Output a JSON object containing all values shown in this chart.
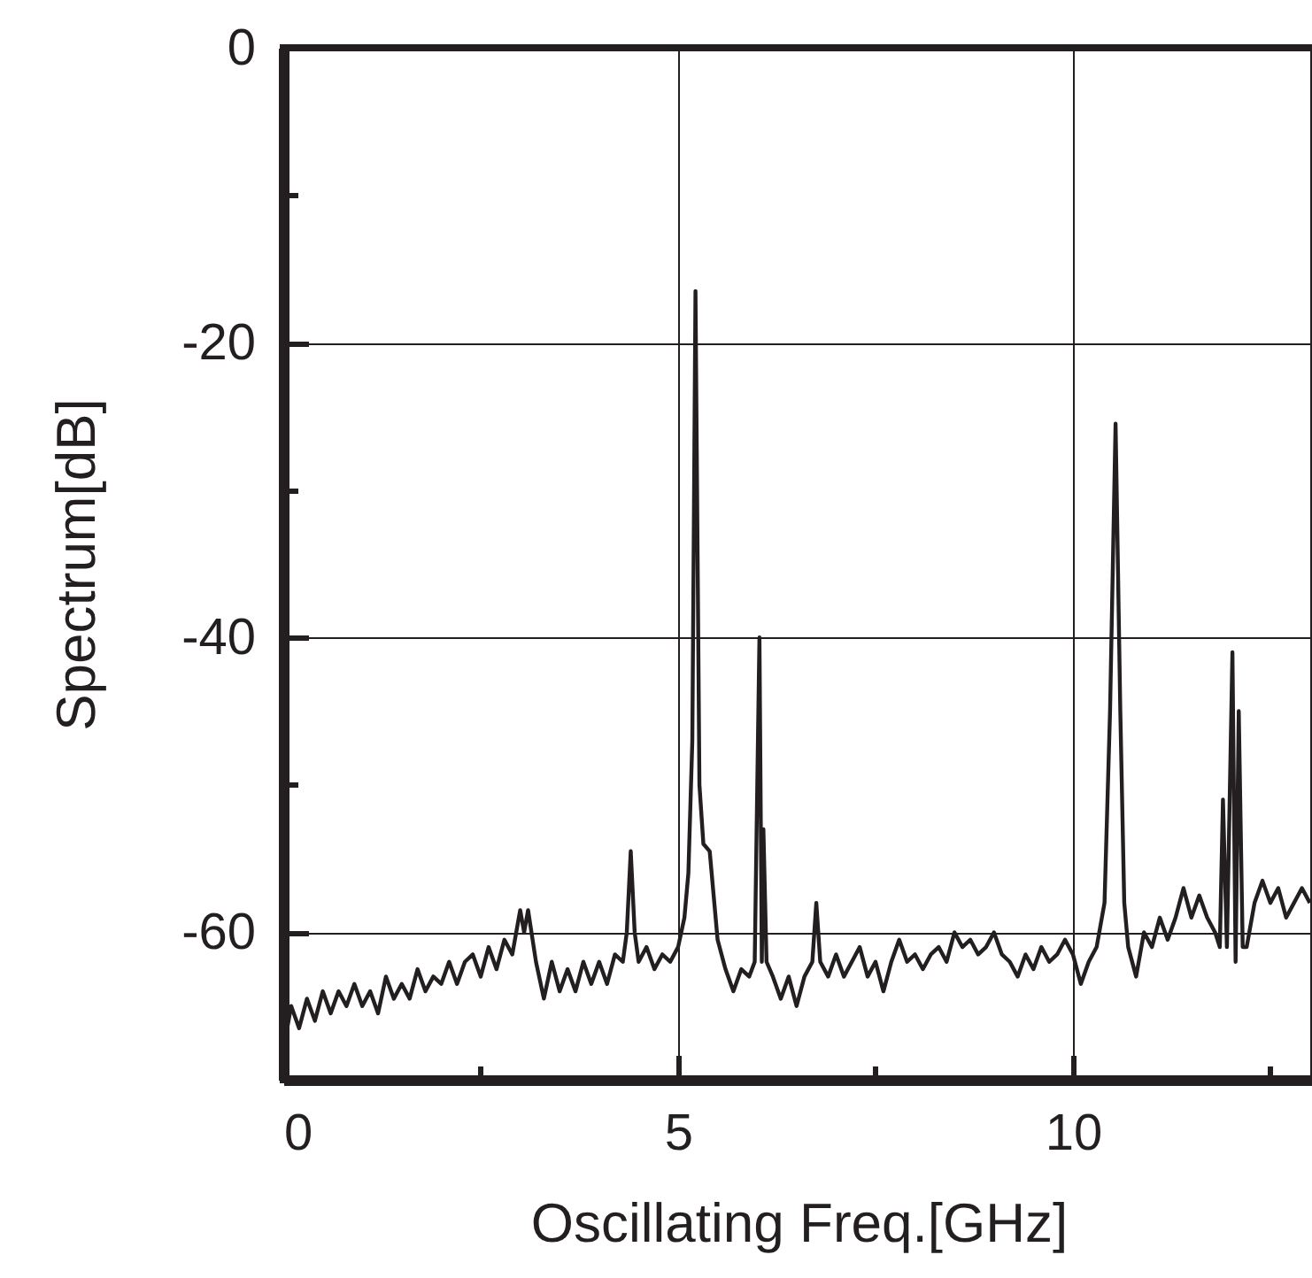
{
  "chart_data": {
    "type": "line",
    "xlabel": "Oscillating Freq.[GHz]",
    "ylabel": "Spectrum[dB]",
    "xlim": [
      0,
      13.05
    ],
    "ylim": [
      -70,
      0
    ],
    "xticks": [
      0,
      {
        "value": 2.5,
        "label": null
      },
      5,
      {
        "value": 7.5,
        "label": null
      },
      10,
      {
        "value": 12.5,
        "label": null
      }
    ],
    "yticks": [
      {
        "value": -70,
        "label": null
      },
      -60,
      {
        "value": -50,
        "label": null
      },
      -40,
      {
        "value": -30,
        "label": null
      },
      -20,
      {
        "value": -10,
        "label": null
      },
      0
    ],
    "grid": true,
    "marker": "none",
    "line_style": "solid",
    "series": [
      {
        "color": "#231f20",
        "x": [
          0,
          0.1,
          0.2,
          0.3,
          0.4,
          0.5,
          0.6,
          0.7,
          0.8,
          0.9,
          1.0,
          1.1,
          1.2,
          1.3,
          1.4,
          1.5,
          1.6,
          1.7,
          1.8,
          1.9,
          2.0,
          2.1,
          2.2,
          2.3,
          2.4,
          2.5,
          2.6,
          2.7,
          2.8,
          2.9,
          3.0,
          3.05,
          3.1,
          3.2,
          3.3,
          3.4,
          3.5,
          3.6,
          3.7,
          3.8,
          3.9,
          4.0,
          4.1,
          4.2,
          4.3,
          4.35,
          4.4,
          4.45,
          4.5,
          4.6,
          4.7,
          4.8,
          4.9,
          5.0,
          5.08,
          5.13,
          5.18,
          5.22,
          5.27,
          5.32,
          5.4,
          5.5,
          5.6,
          5.7,
          5.8,
          5.9,
          5.97,
          6.03,
          6.06,
          6.08,
          6.12,
          6.2,
          6.3,
          6.4,
          6.5,
          6.6,
          6.7,
          6.75,
          6.8,
          6.9,
          7.0,
          7.1,
          7.2,
          7.3,
          7.4,
          7.5,
          7.6,
          7.7,
          7.8,
          7.9,
          8.0,
          8.1,
          8.2,
          8.3,
          8.4,
          8.5,
          8.6,
          8.7,
          8.8,
          8.9,
          9.0,
          9.1,
          9.2,
          9.3,
          9.4,
          9.5,
          9.6,
          9.7,
          9.8,
          9.9,
          10.0,
          10.1,
          10.2,
          10.3,
          10.35,
          10.4,
          10.47,
          10.54,
          10.6,
          10.65,
          10.7,
          10.8,
          10.9,
          11.0,
          11.1,
          11.2,
          11.3,
          11.4,
          11.45,
          11.5,
          11.6,
          11.7,
          11.8,
          11.86,
          11.9,
          11.95,
          12.02,
          12.06,
          12.1,
          12.15,
          12.2,
          12.3,
          12.4,
          12.5,
          12.6,
          12.7,
          12.8,
          12.9,
          13.0
        ],
        "values": [
          -68,
          -65,
          -66.5,
          -64.5,
          -66,
          -64,
          -65.5,
          -64,
          -65,
          -63.5,
          -65,
          -64,
          -65.5,
          -63,
          -64.5,
          -63.5,
          -64.5,
          -62.5,
          -64,
          -63,
          -63.5,
          -62,
          -63.5,
          -62,
          -61.5,
          -63,
          -61,
          -62.5,
          -60.5,
          -61.5,
          -58.5,
          -60,
          -58.5,
          -62,
          -64.5,
          -62,
          -64,
          -62.5,
          -64,
          -62,
          -63.5,
          -62,
          -63.5,
          -61.5,
          -62,
          -60,
          -54.5,
          -60,
          -62,
          -61,
          -62.5,
          -61.5,
          -62,
          -61,
          -59,
          -56,
          -47,
          -16.5,
          -50,
          -54,
          -54.5,
          -60.5,
          -62.5,
          -64,
          -62.5,
          -63,
          -62,
          -40,
          -62,
          -53,
          -62,
          -63,
          -64.5,
          -63,
          -65,
          -63,
          -62,
          -58,
          -62,
          -63,
          -61.5,
          -63,
          -62,
          -61,
          -63,
          -62,
          -64,
          -62,
          -60.5,
          -62,
          -61.5,
          -62.5,
          -61.5,
          -61,
          -62,
          -60,
          -61,
          -60.5,
          -61.5,
          -61,
          -60,
          -61.5,
          -62,
          -63,
          -61.5,
          -62.5,
          -61,
          -62,
          -61.5,
          -60.5,
          -61.5,
          -63.5,
          -62,
          -61,
          -59.5,
          -58,
          -45,
          -25.5,
          -45,
          -58,
          -61,
          -63,
          -60,
          -61,
          -59,
          -60.5,
          -59,
          -57,
          -58,
          -59,
          -57.5,
          -59,
          -60,
          -61,
          -51,
          -61,
          -41,
          -62,
          -45,
          -61,
          -61,
          -58,
          -56.5,
          -58,
          -57,
          -59,
          -58,
          -57,
          -58
        ]
      }
    ]
  }
}
